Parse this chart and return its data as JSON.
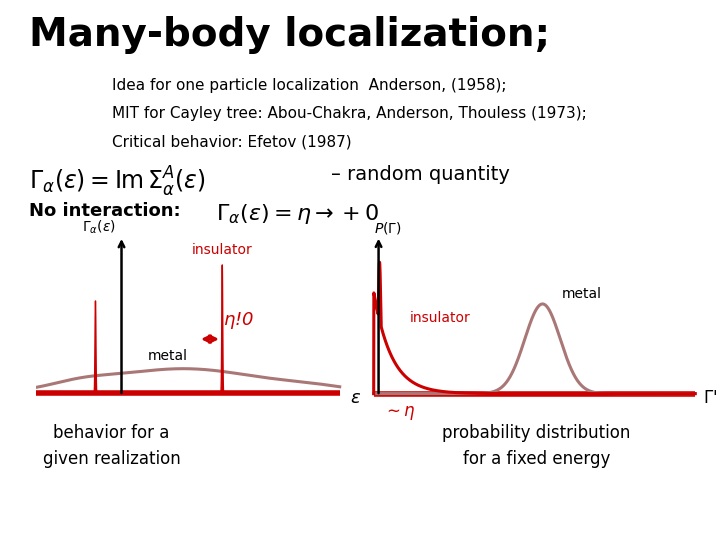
{
  "title": "Many-body localization;",
  "subtitle_lines": [
    "Idea for one particle localization  Anderson, (1958);",
    "MIT for Cayley tree: Abou-Chakra, Anderson, Thouless (1973);",
    "Critical behavior: Efetov (1987)"
  ],
  "formula_line": "– random quantity",
  "no_interaction_label": "No interaction:",
  "background_color": "#ffffff",
  "title_fontsize": 28,
  "subtitle_fontsize": 11,
  "red_color": "#cc0000",
  "mauve_color": "#aa7777",
  "caption_left": "behavior for a\ngiven realization",
  "caption_right": "probability distribution\nfor a fixed energy"
}
